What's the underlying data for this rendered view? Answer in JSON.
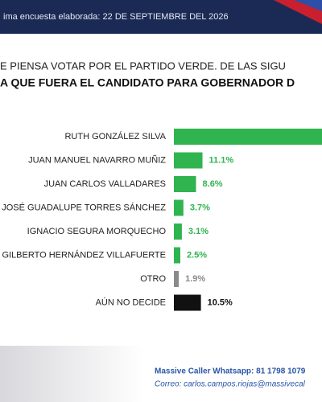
{
  "header": {
    "date_line": "ima encuesta elaborada: 22 DE SEPTIEMBRE DEL 2026"
  },
  "question": {
    "line1": "E PIENSA VOTAR POR EL PARTIDO VERDE. DE LAS SIGU",
    "line2": "A QUE FUERA EL CANDIDATO PARA GOBERNADOR D"
  },
  "chart_data": {
    "type": "bar",
    "orientation": "horizontal",
    "categories": [
      "RUTH GONZÁLEZ SILVA",
      "JUAN MANUEL NAVARRO MUÑIZ",
      "JUAN CARLOS VALLADARES",
      "JOSÉ GUADALUPE TORRES SÁNCHEZ",
      "IGNACIO SEGURA MORQUECHO",
      "GILBERTO HERNÁNDEZ VILLAFUERTE",
      "OTRO",
      "AÚN NO DECIDE"
    ],
    "values": [
      58.6,
      11.1,
      8.6,
      3.7,
      3.1,
      2.5,
      1.9,
      10.5
    ],
    "value_labels": [
      null,
      "11.1%",
      "8.6%",
      "3.7%",
      "3.1%",
      "2.5%",
      "1.9%",
      "10.5%"
    ],
    "colors": [
      "#2fb44f",
      "#2fb44f",
      "#2fb44f",
      "#2fb44f",
      "#2fb44f",
      "#2fb44f",
      "#8a8a8a",
      "#111111"
    ]
  },
  "footer": {
    "line1": "Massive Caller Whatsapp: 81 1798 1079",
    "line2": "Correo: carlos.campos.riojas@massivecal"
  }
}
